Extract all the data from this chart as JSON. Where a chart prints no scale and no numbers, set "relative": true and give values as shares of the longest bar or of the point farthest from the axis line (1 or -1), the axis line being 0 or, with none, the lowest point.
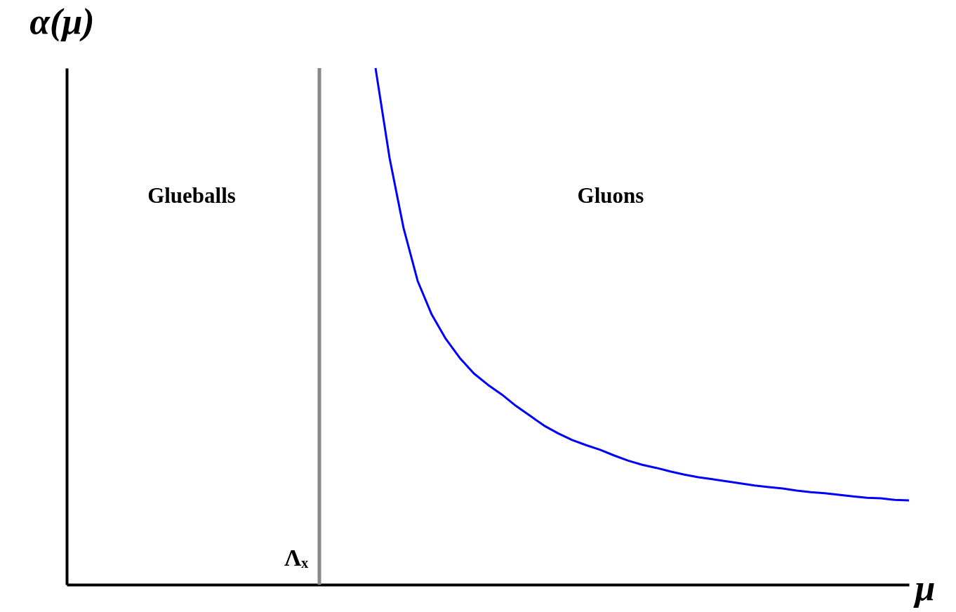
{
  "chart_data": {
    "type": "line",
    "relative": true,
    "xlabel": "μ",
    "ylabel": "α(μ)",
    "categories": [
      null,
      null,
      null,
      null,
      null,
      null,
      null,
      null,
      null,
      null,
      null,
      null,
      null,
      null,
      null,
      null,
      null,
      null,
      null,
      null,
      null,
      null,
      null,
      null,
      null,
      null,
      null,
      null,
      null,
      null,
      null,
      null,
      null,
      null,
      null,
      null,
      null,
      null,
      null,
      null,
      null,
      null,
      null,
      null,
      null,
      null,
      null,
      null,
      null,
      null,
      null,
      null,
      null,
      null,
      null,
      null,
      null,
      null,
      null,
      null,
      null
    ],
    "series": [
      {
        "color": "#0000ff",
        "values": [
          null,
          null,
          null,
          null,
          null,
          null,
          null,
          null,
          null,
          null,
          null,
          null,
          null,
          null,
          null,
          null,
          null,
          null,
          null,
          null,
          null,
          null,
          1,
          0.826,
          0.69,
          0.588,
          0.523,
          0.476,
          0.439,
          0.409,
          0.387,
          0.368,
          0.346,
          0.327,
          0.308,
          0.293,
          0.28,
          0.27,
          0.261,
          0.25,
          0.24,
          0.232,
          0.226,
          0.219,
          0.213,
          0.208,
          0.204,
          0.2,
          0.196,
          0.192,
          0.189,
          0.186,
          0.182,
          0.179,
          0.177,
          0.174,
          0.171,
          0.168,
          0.167,
          0.164,
          0.163
        ]
      }
    ],
    "annotations": [
      "Glueballs",
      "Gluons",
      "Λₓ"
    ]
  }
}
